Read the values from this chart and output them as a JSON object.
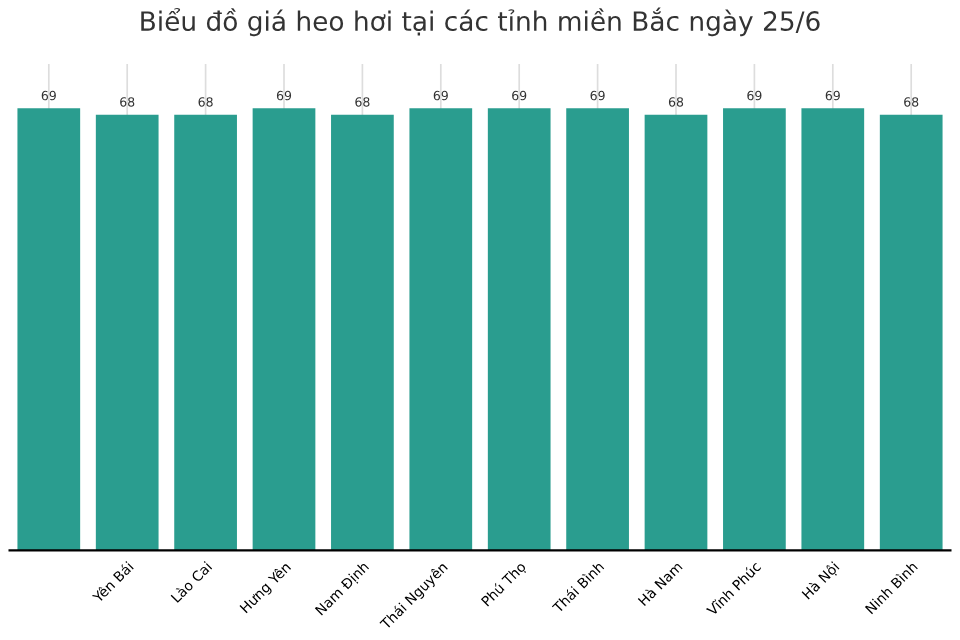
{
  "chart_data": {
    "type": "bar",
    "title": "Biểu đồ giá heo hơi tại các tỉnh miền Bắc ngày 25/6",
    "categories": [
      null,
      "Yên Bái",
      "Lào Cai",
      "Hưng Yên",
      "Nam Định",
      "Thái Nguyên",
      "Phú Thọ",
      "Thái Bình",
      "Hà Nam",
      "Vĩnh Phúc",
      "Hà Nội",
      "Ninh Bình"
    ],
    "values": [
      69,
      68,
      68,
      69,
      68,
      69,
      69,
      69,
      68,
      69,
      69,
      68
    ],
    "color": "#2a9d8f",
    "data_labels": true,
    "grid": "x",
    "tick_labels": "x"
  }
}
